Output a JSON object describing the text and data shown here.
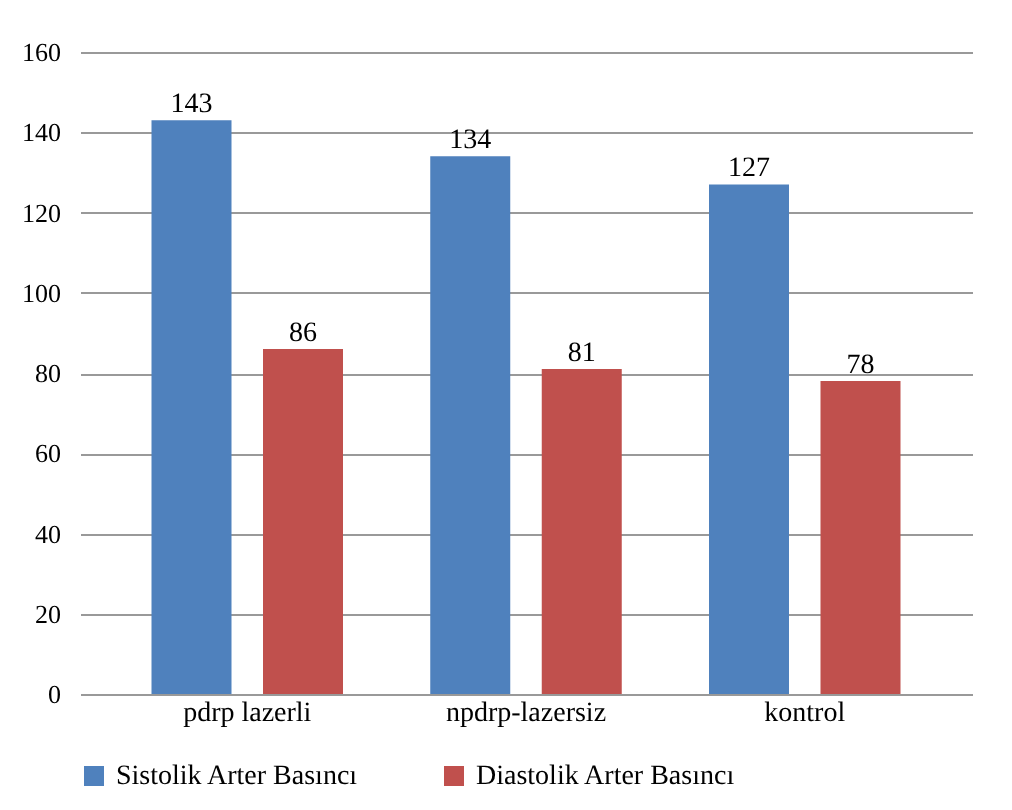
{
  "chart_data": {
    "type": "bar",
    "categories": [
      "pdrp lazerli",
      "npdrp-lazersiz",
      "kontrol"
    ],
    "series": [
      {
        "name": "Sistolik Arter Basıncı",
        "color": "#4f81bd",
        "values": [
          143,
          134,
          127
        ]
      },
      {
        "name": "Diastolik Arter Basıncı",
        "color": "#c0504d",
        "values": [
          86,
          81,
          78
        ]
      }
    ],
    "ylim": [
      0,
      160
    ],
    "yticks": [
      0,
      20,
      40,
      60,
      80,
      100,
      120,
      140,
      160
    ],
    "grid": "y",
    "legend": "bottom",
    "data_labels": true
  }
}
